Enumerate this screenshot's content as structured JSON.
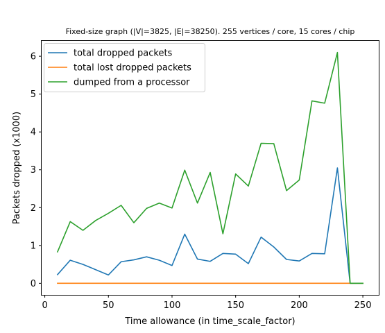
{
  "chart_data": {
    "type": "line",
    "title": "Fixed-size graph (|V|=3825, |E|=38250). 255 vertices / core, 15 cores / chip",
    "xlabel": "Time allowance (in time_scale_factor)",
    "ylabel": "Packets dropped (x1000)",
    "xlim": [
      -2.5,
      262.5
    ],
    "ylim": [
      -0.305,
      6.405
    ],
    "xticks": [
      0,
      50,
      100,
      150,
      200,
      250
    ],
    "yticks": [
      0,
      1,
      2,
      3,
      4,
      5,
      6
    ],
    "grid": false,
    "legend_position": "top-left",
    "x": [
      10,
      20,
      30,
      40,
      50,
      60,
      70,
      80,
      90,
      100,
      110,
      120,
      130,
      140,
      150,
      160,
      170,
      180,
      190,
      200,
      210,
      220,
      230,
      240,
      250
    ],
    "series": [
      {
        "name": "total dropped packets",
        "color": "#1f77b4",
        "values": [
          0.23,
          0.61,
          0.5,
          0.36,
          0.22,
          0.57,
          0.62,
          0.7,
          0.61,
          0.47,
          1.3,
          0.64,
          0.58,
          0.79,
          0.77,
          0.52,
          1.22,
          0.96,
          0.63,
          0.59,
          0.79,
          0.78,
          3.05,
          0.0,
          0.0
        ]
      },
      {
        "name": "total lost dropped packets",
        "color": "#ff7f0e",
        "values": [
          0,
          0,
          0,
          0,
          0,
          0,
          0,
          0,
          0,
          0,
          0,
          0,
          0,
          0,
          0,
          0,
          0,
          0,
          0,
          0,
          0,
          0,
          0,
          0,
          0
        ]
      },
      {
        "name": "dumped from a processor",
        "color": "#2ca02c",
        "values": [
          0.83,
          1.63,
          1.4,
          1.66,
          1.85,
          2.06,
          1.6,
          1.98,
          2.12,
          1.99,
          2.99,
          2.12,
          2.93,
          1.31,
          2.89,
          2.57,
          3.7,
          3.69,
          2.45,
          2.73,
          4.82,
          4.76,
          6.1,
          0.0,
          0.0
        ]
      }
    ]
  }
}
